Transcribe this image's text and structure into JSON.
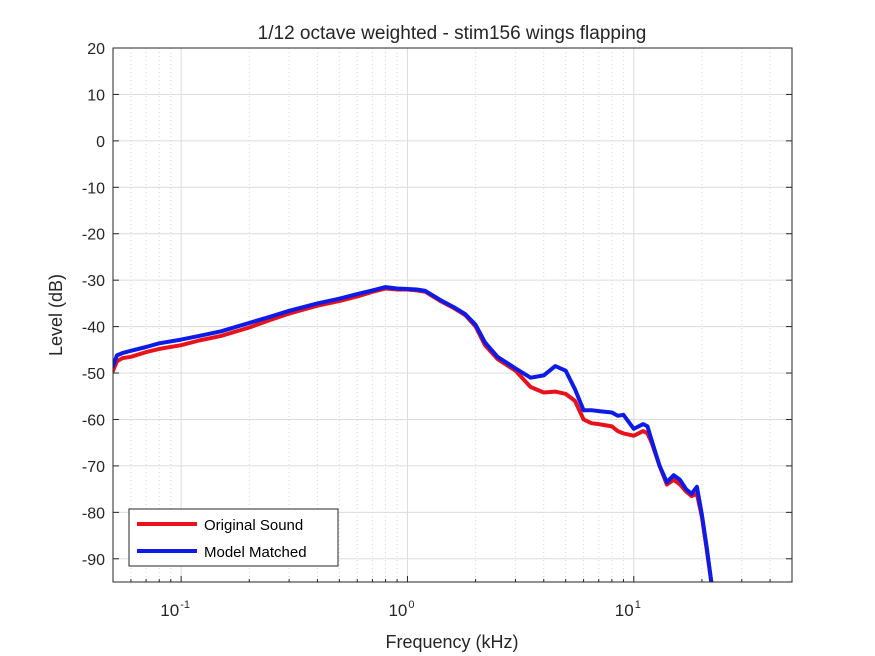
{
  "chart_data": {
    "type": "line",
    "title": "1/12 octave weighted - stim156 wings flapping",
    "xlabel": "Frequency (kHz)",
    "ylabel": "Level (dB)",
    "xscale": "log",
    "xlim": [
      0.05,
      50
    ],
    "ylim": [
      -95,
      20
    ],
    "grid": true,
    "legend_location": "bottom-left",
    "x_ticks": [
      {
        "base": "10",
        "exp": "-1",
        "value": 0.1
      },
      {
        "base": "10",
        "exp": "0",
        "value": 1
      },
      {
        "base": "10",
        "exp": "1",
        "value": 10
      }
    ],
    "y_ticks": [
      20,
      10,
      0,
      -10,
      -20,
      -30,
      -40,
      -50,
      -60,
      -70,
      -80,
      -90
    ],
    "series": [
      {
        "name": "Original Sound",
        "color": "#e8121b",
        "x": [
          0.05,
          0.052,
          0.055,
          0.06,
          0.07,
          0.08,
          0.1,
          0.12,
          0.15,
          0.2,
          0.25,
          0.3,
          0.4,
          0.5,
          0.6,
          0.7,
          0.8,
          0.9,
          1.0,
          1.1,
          1.2,
          1.4,
          1.6,
          1.8,
          2.0,
          2.2,
          2.5,
          3.0,
          3.5,
          4.0,
          4.5,
          5.0,
          5.5,
          6.0,
          6.5,
          7.0,
          8.0,
          8.5,
          9.0,
          10.0,
          11.0,
          11.5,
          12.0,
          13.0,
          14.0,
          15.0,
          16.0,
          17.0,
          18.0,
          19.0,
          20.0,
          21.0,
          22.0
        ],
        "values": [
          -49.5,
          -47.5,
          -46.8,
          -46.5,
          -45.5,
          -44.8,
          -44.0,
          -43.0,
          -42.0,
          -40.2,
          -38.5,
          -37.2,
          -35.5,
          -34.5,
          -33.5,
          -32.5,
          -31.8,
          -32.0,
          -32.0,
          -32.2,
          -32.5,
          -34.5,
          -36.0,
          -37.5,
          -40.0,
          -44.0,
          -47.0,
          -49.5,
          -53.0,
          -54.2,
          -54.0,
          -54.5,
          -56.0,
          -60.0,
          -60.8,
          -61.0,
          -61.5,
          -62.5,
          -63.0,
          -63.5,
          -62.5,
          -63.0,
          -65.0,
          -70.0,
          -74.0,
          -73.0,
          -74.0,
          -75.5,
          -76.5,
          -76.0,
          -81.0,
          -88.0,
          -95.0
        ]
      },
      {
        "name": "Model Matched",
        "color": "#0d1be8",
        "x": [
          0.05,
          0.052,
          0.055,
          0.06,
          0.07,
          0.08,
          0.1,
          0.12,
          0.15,
          0.2,
          0.25,
          0.3,
          0.4,
          0.5,
          0.6,
          0.7,
          0.8,
          0.9,
          1.0,
          1.1,
          1.2,
          1.4,
          1.6,
          1.8,
          2.0,
          2.2,
          2.5,
          3.0,
          3.5,
          4.0,
          4.5,
          5.0,
          5.5,
          6.0,
          6.5,
          7.0,
          8.0,
          8.5,
          9.0,
          10.0,
          11.0,
          11.5,
          12.0,
          13.0,
          14.0,
          15.0,
          16.0,
          17.0,
          18.0,
          19.0,
          20.0,
          21.0,
          22.0
        ],
        "values": [
          -48.5,
          -46.2,
          -45.7,
          -45.2,
          -44.4,
          -43.6,
          -42.8,
          -42.0,
          -41.0,
          -39.2,
          -37.8,
          -36.6,
          -35.0,
          -34.0,
          -33.0,
          -32.2,
          -31.5,
          -31.8,
          -31.9,
          -32.0,
          -32.3,
          -34.3,
          -35.8,
          -37.3,
          -39.6,
          -43.4,
          -46.5,
          -49.0,
          -51.0,
          -50.5,
          -48.5,
          -49.5,
          -53.5,
          -58.0,
          -58.0,
          -58.2,
          -58.5,
          -59.2,
          -59.0,
          -62.0,
          -61.0,
          -61.5,
          -64.5,
          -70.0,
          -73.5,
          -72.0,
          -73.0,
          -75.0,
          -76.0,
          -74.5,
          -80.5,
          -87.5,
          -95.0
        ]
      }
    ]
  }
}
